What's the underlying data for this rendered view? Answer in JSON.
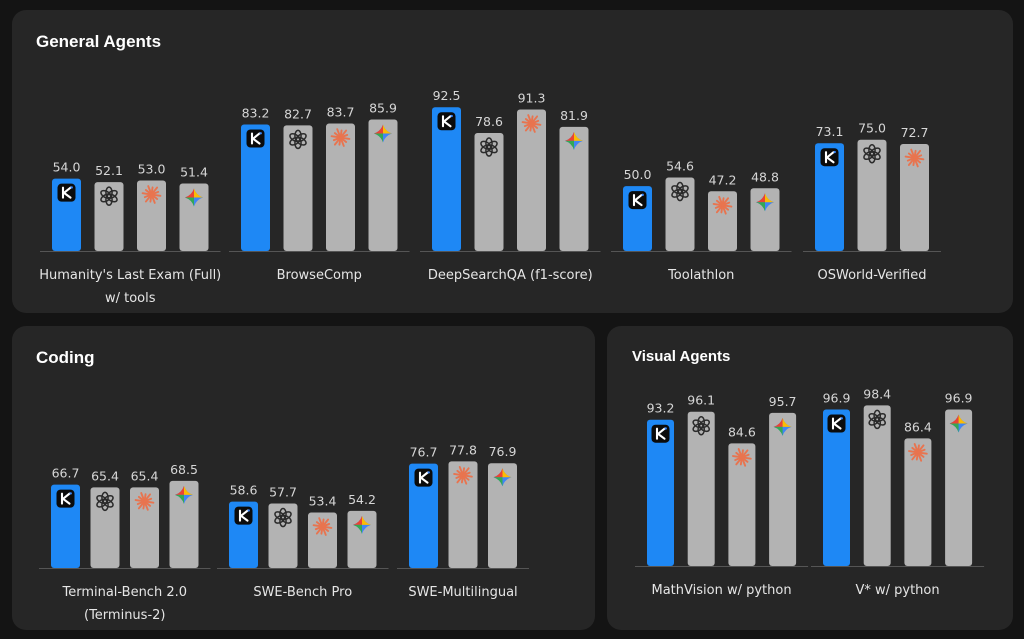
{
  "colors": {
    "highlight": "#1e88f5",
    "default_bar": "#b3b3b3",
    "baseline": "#555555",
    "panel": "#262626",
    "background": "#141414",
    "claude_icon": "#e8744f"
  },
  "model_icons": [
    "kimi-icon",
    "openai-icon",
    "claude-icon",
    "gemini-icon"
  ],
  "chart_data": [
    {
      "type": "bar",
      "title": "General Agents",
      "ylim": [
        0,
        100
      ],
      "grid": false,
      "groups": [
        {
          "category": "Humanity's Last Exam (Full) w/ tools",
          "label_lines": [
            "Humanity's Last Exam (Full)",
            "w/ tools"
          ],
          "values": [
            54.0,
            52.1,
            53.0,
            51.4
          ],
          "labels": [
            "54.0",
            "52.1",
            "53.0",
            "51.4"
          ],
          "icons": [
            "kimi-icon",
            "openai-icon",
            "claude-icon",
            "gemini-icon"
          ]
        },
        {
          "category": "BrowseComp",
          "label_lines": [
            "BrowseComp"
          ],
          "values": [
            83.2,
            82.7,
            83.7,
            85.9
          ],
          "labels": [
            "83.2",
            "82.7",
            "83.7",
            "85.9"
          ],
          "icons": [
            "kimi-icon",
            "openai-icon",
            "claude-icon",
            "gemini-icon"
          ]
        },
        {
          "category": "DeepSearchQA (f1-score)",
          "label_lines": [
            "DeepSearchQA (f1-score)"
          ],
          "values": [
            92.5,
            78.6,
            91.3,
            81.9
          ],
          "labels": [
            "92.5",
            "78.6",
            "91.3",
            "81.9"
          ],
          "icons": [
            "kimi-icon",
            "openai-icon",
            "claude-icon",
            "gemini-icon"
          ]
        },
        {
          "category": "Toolathlon",
          "label_lines": [
            "Toolathlon"
          ],
          "values": [
            50.0,
            54.6,
            47.2,
            48.8
          ],
          "labels": [
            "50.0",
            "54.6",
            "47.2",
            "48.8"
          ],
          "icons": [
            "kimi-icon",
            "openai-icon",
            "claude-icon",
            "gemini-icon"
          ]
        },
        {
          "category": "OSWorld-Verified",
          "label_lines": [
            "OSWorld-Verified"
          ],
          "values": [
            73.1,
            75.0,
            72.7
          ],
          "labels": [
            "73.1",
            "75.0",
            "72.7"
          ],
          "icons": [
            "kimi-icon",
            "openai-icon",
            "claude-icon"
          ]
        }
      ]
    },
    {
      "type": "bar",
      "title": "Coding",
      "ylim": [
        0,
        100
      ],
      "grid": false,
      "groups": [
        {
          "category": "Terminal-Bench 2.0 (Terminus-2)",
          "label_lines": [
            "Terminal-Bench 2.0",
            "(Terminus-2)"
          ],
          "values": [
            66.7,
            65.4,
            65.4,
            68.5
          ],
          "labels": [
            "66.7",
            "65.4",
            "65.4",
            "68.5"
          ],
          "icons": [
            "kimi-icon",
            "openai-icon",
            "claude-icon",
            "gemini-icon"
          ]
        },
        {
          "category": "SWE-Bench Pro",
          "label_lines": [
            "SWE-Bench Pro"
          ],
          "values": [
            58.6,
            57.7,
            53.4,
            54.2
          ],
          "labels": [
            "58.6",
            "57.7",
            "53.4",
            "54.2"
          ],
          "icons": [
            "kimi-icon",
            "openai-icon",
            "claude-icon",
            "gemini-icon"
          ]
        },
        {
          "category": "SWE-Multilingual",
          "label_lines": [
            "SWE-Multilingual"
          ],
          "values": [
            76.7,
            77.8,
            76.9
          ],
          "labels": [
            "76.7",
            "77.8",
            "76.9"
          ],
          "icons": [
            "kimi-icon",
            "claude-icon",
            "gemini-icon"
          ]
        }
      ]
    },
    {
      "type": "bar",
      "title": "Visual Agents",
      "ylim": [
        0,
        100
      ],
      "grid": false,
      "groups": [
        {
          "category": "MathVision w/ python",
          "label_lines": [
            "MathVision w/ python"
          ],
          "values": [
            93.2,
            96.1,
            84.6,
            95.7
          ],
          "labels": [
            "93.2",
            "96.1",
            "84.6",
            "95.7"
          ],
          "icons": [
            "kimi-icon",
            "openai-icon",
            "claude-icon",
            "gemini-icon"
          ]
        },
        {
          "category": "V* w/ python",
          "label_lines": [
            "V* w/ python"
          ],
          "values": [
            96.9,
            98.4,
            86.4,
            96.9
          ],
          "labels": [
            "96.9",
            "98.4",
            "86.4",
            "96.9"
          ],
          "icons": [
            "kimi-icon",
            "openai-icon",
            "claude-icon",
            "gemini-icon"
          ]
        }
      ]
    }
  ]
}
